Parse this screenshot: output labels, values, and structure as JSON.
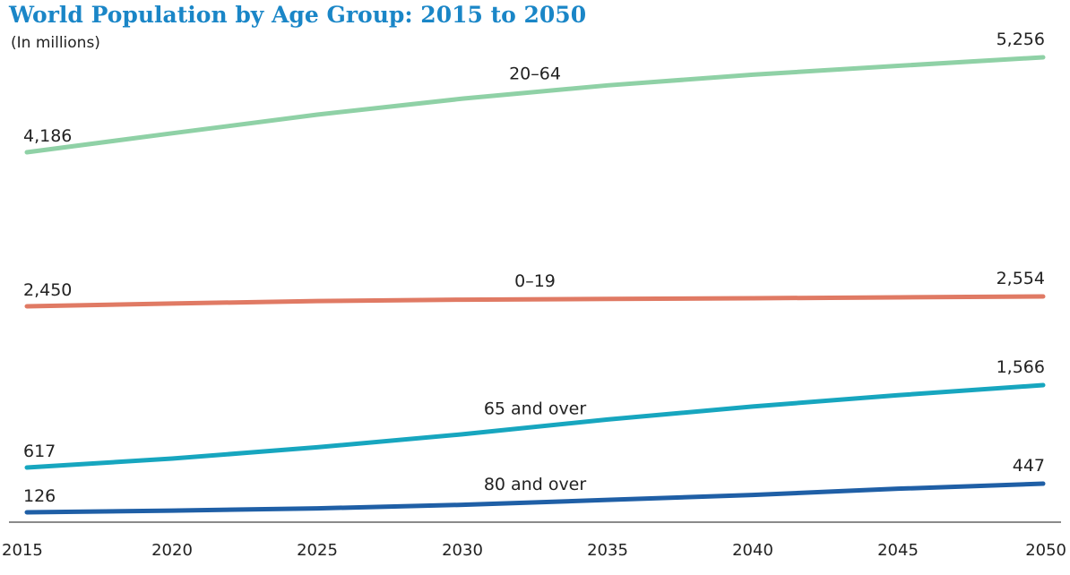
{
  "chart_data": {
    "type": "line",
    "title": "World Population by Age Group: 2015 to 2050",
    "ylabel": "(In millions)",
    "x": [
      2015,
      2020,
      2025,
      2030,
      2035,
      2040,
      2045,
      2050
    ],
    "xlim": [
      2015,
      2050
    ],
    "grid": false,
    "legend": "inline labels",
    "series": [
      {
        "name": "20–64",
        "color": "#8fd1a6",
        "values": [
          4186,
          4400,
          4610,
          4790,
          4940,
          5060,
          5160,
          5256
        ],
        "start_label": "4,186",
        "end_label": "5,256"
      },
      {
        "name": "0–19",
        "color": "#e07a64",
        "values": [
          2450,
          2480,
          2505,
          2520,
          2528,
          2535,
          2545,
          2554
        ],
        "start_label": "2,450",
        "end_label": "2,554"
      },
      {
        "name": "65 and over",
        "color": "#17a6bf",
        "values": [
          617,
          720,
          850,
          1000,
          1170,
          1320,
          1450,
          1566
        ],
        "start_label": "617",
        "end_label": "1,566"
      },
      {
        "name": "80 and over",
        "color": "#1f5fa6",
        "values": [
          126,
          145,
          170,
          210,
          265,
          320,
          390,
          447
        ],
        "start_label": "126",
        "end_label": "447"
      }
    ]
  }
}
